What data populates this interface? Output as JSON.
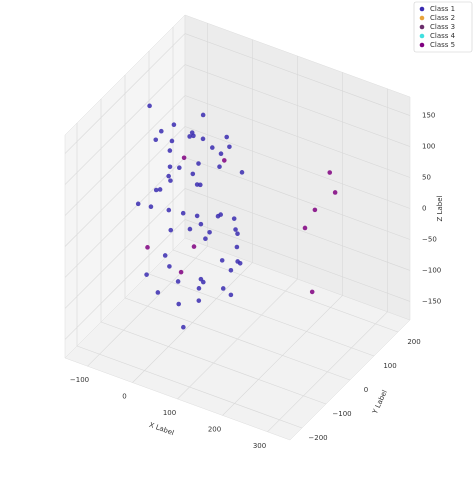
{
  "chart_data": {
    "type": "scatter3d",
    "xlabel": "X Label",
    "ylabel": "Y Label",
    "zlabel": "Z Label",
    "xlim": [
      -150,
      350
    ],
    "ylim": [
      -250,
      250
    ],
    "zlim": [
      -180,
      180
    ],
    "xticks": [
      {
        "value": -100,
        "label": "−100"
      },
      0,
      100,
      200,
      300
    ],
    "yticks": [
      {
        "value": -200,
        "label": "−200"
      },
      {
        "value": -100,
        "label": "−100"
      },
      0,
      100,
      200
    ],
    "zticks": [
      {
        "value": -150,
        "label": "−150"
      },
      {
        "value": -100,
        "label": "−100"
      },
      {
        "value": -50,
        "label": "−50"
      },
      0,
      50,
      100,
      150
    ],
    "grid": true,
    "legend": "upper right",
    "series": [
      {
        "name": "Class 1",
        "color": "#3a2bb0",
        "x": [
          -80,
          -45,
          12,
          60,
          95,
          -20,
          33,
          -67,
          5,
          78,
          -90,
          40,
          -10,
          22,
          -55,
          88,
          -30,
          66,
          -75,
          15,
          50,
          -5,
          -40,
          70,
          -85,
          28,
          -60,
          100,
          -15,
          45,
          -35,
          10,
          82,
          -70,
          55,
          -25,
          -95,
          36,
          64,
          -50,
          18,
          -8,
          92,
          -62,
          26,
          -42,
          74,
          2,
          -88,
          48,
          -18,
          58,
          -72,
          30,
          -38,
          85,
          -3,
          -58,
          40,
          8
        ],
        "y": [
          20,
          -60,
          90,
          -30,
          10,
          70,
          -100,
          40,
          -20,
          60,
          -10,
          110,
          -80,
          30,
          -50,
          -5,
          100,
          -70,
          50,
          -40,
          80,
          -90,
          15,
          -25,
          65,
          -110,
          35,
          0,
          55,
          -65,
          85,
          -15,
          45,
          -95,
          25,
          -45,
          5,
          75,
          -85,
          95,
          -35,
          60,
          -55,
          -75,
          105,
          40,
          -20,
          -100,
          30,
          70,
          -60,
          15,
          80,
          -30,
          -80,
          20,
          50,
          -5,
          -40,
          10
        ],
        "z": [
          100,
          -120,
          40,
          130,
          -60,
          10,
          -140,
          80,
          -20,
          60,
          150,
          -90,
          30,
          -40,
          120,
          -110,
          70,
          0,
          -70,
          140,
          -30,
          90,
          -130,
          20,
          50,
          -100,
          110,
          -10,
          -150,
          80,
          -50,
          130,
          -80,
          30,
          -120,
          60,
          -20,
          100,
          -60,
          10,
          145,
          -140,
          40,
          -90,
          70,
          -30,
          120,
          -50,
          0,
          -110,
          90,
          -70,
          20,
          -125,
          55,
          -15,
          135,
          -85,
          5,
          75
        ]
      },
      {
        "name": "Class 2",
        "color": "#e8a33a",
        "x": [],
        "y": [],
        "z": []
      },
      {
        "name": "Class 3",
        "color": "#6b2d6b",
        "x": [],
        "y": [],
        "z": []
      },
      {
        "name": "Class 4",
        "color": "#40e0e0",
        "x": [],
        "y": [],
        "z": []
      },
      {
        "name": "Class 5",
        "color": "#800080",
        "x": [
          305,
          317,
          272,
          250,
          266,
          -100,
          -40,
          30,
          60,
          -20
        ],
        "y": [
          0,
          0,
          0,
          0,
          0,
          0,
          40,
          -50,
          20,
          -10
        ],
        "z": [
          143,
          114,
          74,
          39,
          -60,
          -85,
          60,
          -30,
          90,
          -100
        ]
      }
    ]
  }
}
